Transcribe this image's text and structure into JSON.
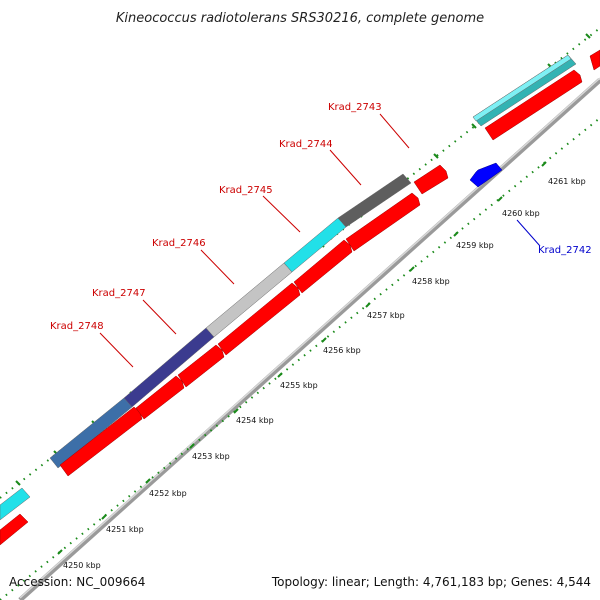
{
  "title": "Kineococcus radiotolerans SRS30216, complete genome",
  "footer": {
    "accession": "Accession: NC_009664",
    "summary": "Topology: linear; Length: 4,761,183 bp; Genes: 4,544"
  },
  "scale_labels": [
    "4250 kbp",
    "4251 kbp",
    "4252 kbp",
    "4253 kbp",
    "4254 kbp",
    "4255 kbp",
    "4256 kbp",
    "4257 kbp",
    "4258 kbp",
    "4259 kbp",
    "4260 kbp",
    "4261 kbp"
  ],
  "genes": [
    {
      "label": "Krad_2748",
      "color": "#cc0000"
    },
    {
      "label": "Krad_2747",
      "color": "#cc0000"
    },
    {
      "label": "Krad_2746",
      "color": "#cc0000"
    },
    {
      "label": "Krad_2745",
      "color": "#cc0000"
    },
    {
      "label": "Krad_2744",
      "color": "#cc0000"
    },
    {
      "label": "Krad_2743",
      "color": "#cc0000"
    },
    {
      "label": "Krad_2742",
      "color": "#0000cc"
    }
  ],
  "colors": {
    "cds_forward": "#ff0000",
    "cds_reverse": "#0000ff",
    "genome_line": "#888888",
    "tick": "#1a8a1a",
    "cyan": "#22e0e8",
    "teal": "#33b3b3",
    "steelblue": "#3d6fa8",
    "navy": "#3b3b8f",
    "lightgray": "#c4c4c4",
    "darkgray": "#5e5e5e"
  }
}
